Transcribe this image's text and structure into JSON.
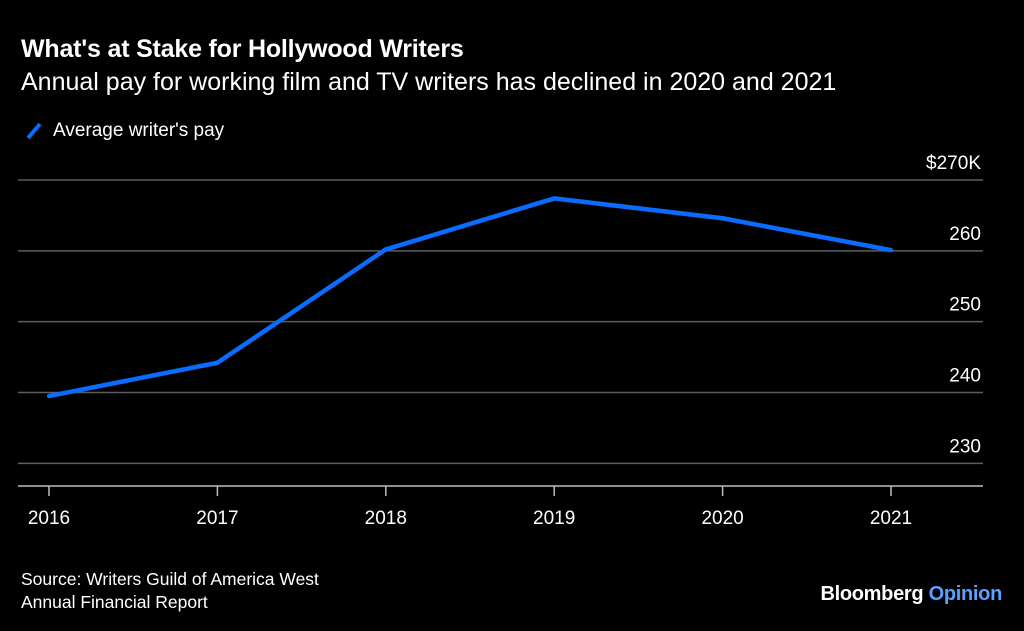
{
  "title": "What's at Stake for Hollywood Writers",
  "subtitle": "Annual pay for working film and TV writers has declined in 2020 and 2021",
  "legend": {
    "label": "Average writer's pay"
  },
  "colors": {
    "background": "#000000",
    "line": "#0a6cff",
    "grid": "#5e5e5e",
    "text": "#ffffff",
    "brand_accent": "#5aa0ff"
  },
  "chart_data": {
    "type": "line",
    "title": "What's at Stake for Hollywood Writers",
    "subtitle": "Annual pay for working film and TV writers has declined in 2020 and 2021",
    "x": [
      "2016",
      "2017",
      "2018",
      "2019",
      "2020",
      "2021"
    ],
    "series": [
      {
        "name": "Average writer's pay",
        "values": [
          239.5,
          244.2,
          260.2,
          267.4,
          264.6,
          260.1
        ]
      }
    ],
    "ylim": [
      226.8,
      270
    ],
    "yticks": [
      270,
      260,
      250,
      240,
      230
    ],
    "ytick_labels": [
      "$270K",
      "260",
      "250",
      "240",
      "230"
    ],
    "y_axis_position": "right",
    "grid": true,
    "legend_position": "top-left",
    "xlabel": "",
    "ylabel": ""
  },
  "source": {
    "line1": "Source: Writers Guild of America West",
    "line2": "Annual Financial Report"
  },
  "brand": {
    "name": "Bloomberg",
    "section": "Opinion"
  }
}
